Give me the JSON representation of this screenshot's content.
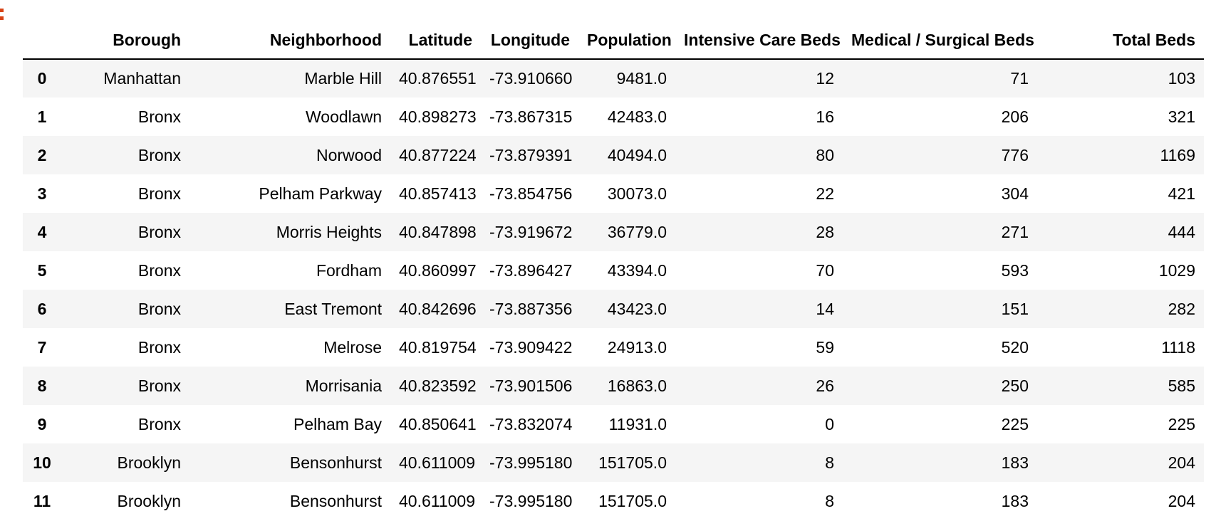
{
  "table": {
    "columns": [
      "",
      "Borough",
      "Neighborhood",
      "Latitude",
      "Longitude",
      "Population",
      "Intensive Care Beds",
      "Medical / Surgical Beds",
      "Total Beds"
    ],
    "rows": [
      [
        "0",
        "Manhattan",
        "Marble Hill",
        "40.876551",
        "-73.910660",
        "9481.0",
        "12",
        "71",
        "103"
      ],
      [
        "1",
        "Bronx",
        "Woodlawn",
        "40.898273",
        "-73.867315",
        "42483.0",
        "16",
        "206",
        "321"
      ],
      [
        "2",
        "Bronx",
        "Norwood",
        "40.877224",
        "-73.879391",
        "40494.0",
        "80",
        "776",
        "1169"
      ],
      [
        "3",
        "Bronx",
        "Pelham Parkway",
        "40.857413",
        "-73.854756",
        "30073.0",
        "22",
        "304",
        "421"
      ],
      [
        "4",
        "Bronx",
        "Morris Heights",
        "40.847898",
        "-73.919672",
        "36779.0",
        "28",
        "271",
        "444"
      ],
      [
        "5",
        "Bronx",
        "Fordham",
        "40.860997",
        "-73.896427",
        "43394.0",
        "70",
        "593",
        "1029"
      ],
      [
        "6",
        "Bronx",
        "East Tremont",
        "40.842696",
        "-73.887356",
        "43423.0",
        "14",
        "151",
        "282"
      ],
      [
        "7",
        "Bronx",
        "Melrose",
        "40.819754",
        "-73.909422",
        "24913.0",
        "59",
        "520",
        "1118"
      ],
      [
        "8",
        "Bronx",
        "Morrisania",
        "40.823592",
        "-73.901506",
        "16863.0",
        "26",
        "250",
        "585"
      ],
      [
        "9",
        "Bronx",
        "Pelham Bay",
        "40.850641",
        "-73.832074",
        "11931.0",
        "0",
        "225",
        "225"
      ],
      [
        "10",
        "Brooklyn",
        "Bensonhurst",
        "40.611009",
        "-73.995180",
        "151705.0",
        "8",
        "183",
        "204"
      ],
      [
        "11",
        "Brooklyn",
        "Bensonhurst",
        "40.611009",
        "-73.995180",
        "151705.0",
        "8",
        "183",
        "204"
      ]
    ]
  },
  "colors": {
    "prompt_marker": "#d84315",
    "stripe": "#f5f5f5"
  }
}
